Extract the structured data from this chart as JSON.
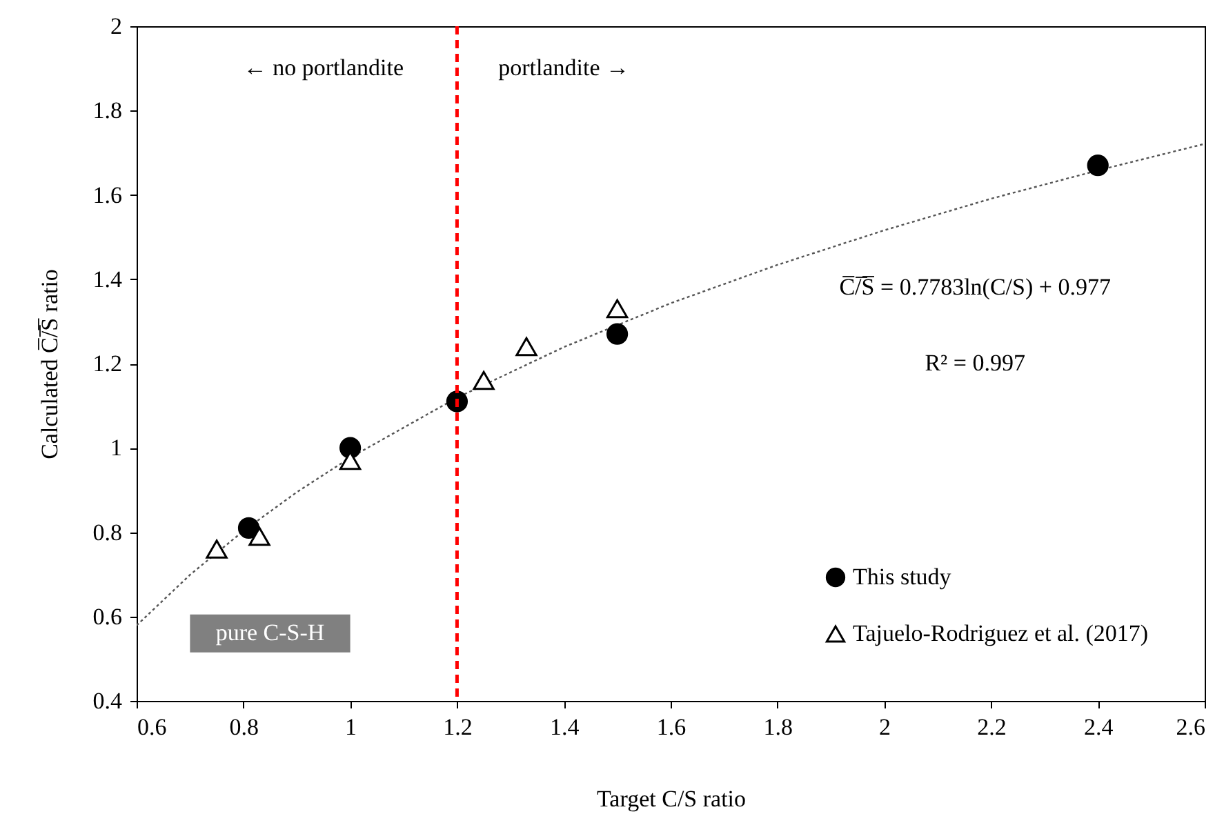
{
  "chart_data": {
    "type": "scatter",
    "xlabel": "Target C/S ratio",
    "ylabel": "Calculated C̅/̅S̅ ratio",
    "xlim": [
      0.6,
      2.6
    ],
    "xticks": [
      0.6,
      0.8,
      1,
      1.2,
      1.4,
      1.6,
      1.8,
      2,
      2.2,
      2.4,
      2.6
    ],
    "ylim": [
      0.4,
      2
    ],
    "yticks": [
      0.4,
      0.6,
      0.8,
      1,
      1.2,
      1.4,
      1.6,
      1.8,
      2
    ],
    "grid": false,
    "legend": "bottom right",
    "series": [
      {
        "name": "This study",
        "color": "#000000",
        "marker": "circle",
        "x": [
          0.81,
          1.0,
          1.2,
          1.5,
          2.4
        ],
        "values": [
          0.81,
          1.0,
          1.11,
          1.27,
          1.67
        ]
      },
      {
        "name": "Tajuelo-Rodriguez et al. (2017)",
        "color": "#000000",
        "marker": "triangle",
        "x": [
          0.75,
          0.83,
          1.0,
          1.25,
          1.33,
          1.5
        ],
        "values": [
          0.76,
          0.79,
          0.97,
          1.16,
          1.24,
          1.33
        ]
      },
      {
        "type": "line",
        "color": "#555555",
        "line_style": "dotted",
        "marker": "none",
        "x": [
          0.6,
          0.7,
          0.8,
          0.9,
          1.0,
          1.2,
          1.4,
          1.6,
          1.8,
          2.0,
          2.2,
          2.4,
          2.6
        ],
        "values": [
          0.579,
          0.699,
          0.803,
          0.895,
          0.977,
          1.119,
          1.239,
          1.343,
          1.434,
          1.516,
          1.591,
          1.658,
          1.721
        ]
      }
    ],
    "ref_lines": [
      {
        "axis": "x",
        "value": 1.2,
        "color": "#ff0000",
        "line_style": "dashed"
      }
    ],
    "annotations": [
      "← no portlandite",
      "portlandite →",
      "C̅/̅S̅ = 0.7783ln(C/S) + 0.977",
      "R² = 0.997",
      "pure C-S-H"
    ]
  }
}
